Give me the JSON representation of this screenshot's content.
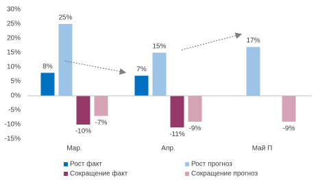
{
  "chart_data": {
    "type": "bar",
    "categories": [
      "Мар.",
      "Апр.",
      "Май П"
    ],
    "series": [
      {
        "name": "Рост факт",
        "color": "#0070c0",
        "values": [
          8,
          7,
          null
        ],
        "value_labels": [
          "8%",
          "7%",
          null
        ]
      },
      {
        "name": "Рост прогноз",
        "color": "#9dc3e6",
        "values": [
          25,
          15,
          17
        ],
        "value_labels": [
          "25%",
          "15%",
          "17%"
        ]
      },
      {
        "name": "Сокращение факт",
        "color": "#953767",
        "values": [
          -10,
          -11,
          null
        ],
        "value_labels": [
          "-10%",
          "-11%",
          null
        ]
      },
      {
        "name": "Сокращение прогноз",
        "color": "#d5a3b5",
        "values": [
          -7,
          -9,
          -9
        ],
        "value_labels": [
          "-7%",
          "-9%",
          "-9%"
        ]
      }
    ],
    "ylim": [
      -15,
      30
    ],
    "yticks": [
      {
        "value": -15,
        "label": "-15%"
      },
      {
        "value": -10,
        "label": "-10%"
      },
      {
        "value": -5,
        "label": "-5%"
      },
      {
        "value": 0,
        "label": "0%"
      },
      {
        "value": 5,
        "label": "5%"
      },
      {
        "value": 10,
        "label": "10%"
      },
      {
        "value": 15,
        "label": "15%"
      },
      {
        "value": 20,
        "label": "20%"
      },
      {
        "value": 25,
        "label": "25%"
      },
      {
        "value": 30,
        "label": "30%"
      }
    ],
    "grid": false
  }
}
